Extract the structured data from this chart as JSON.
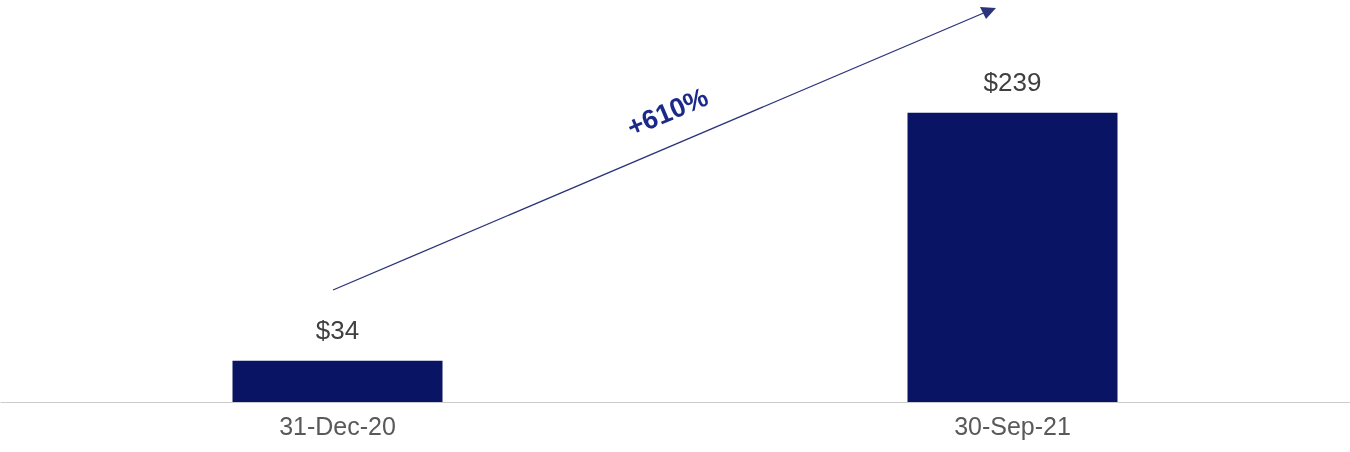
{
  "chart_data": {
    "type": "bar",
    "categories": [
      "31-Dec-20",
      "30-Sep-21"
    ],
    "values": [
      34,
      239
    ],
    "value_labels": [
      "$34",
      "$239"
    ],
    "color": "#0a1464",
    "annotations": [
      "+610%"
    ]
  }
}
